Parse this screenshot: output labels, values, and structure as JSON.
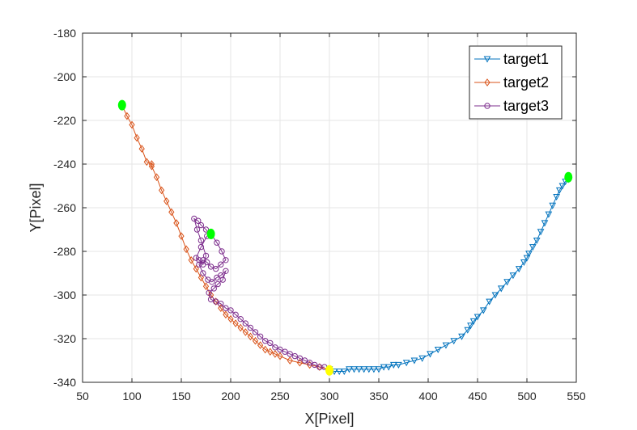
{
  "chart_data": {
    "type": "line",
    "title": "",
    "xlabel": "X[Pixel]",
    "ylabel": "Y[Pixel]",
    "xlim": [
      50,
      550
    ],
    "ylim": [
      -340,
      -180
    ],
    "xticks": [
      50,
      100,
      150,
      200,
      250,
      300,
      350,
      400,
      450,
      500,
      550
    ],
    "yticks": [
      -180,
      -200,
      -220,
      -240,
      -260,
      -280,
      -300,
      -320,
      -340
    ],
    "grid": true,
    "legend_position": "top-right",
    "series": [
      {
        "name": "target1",
        "color": "#0072BD",
        "marker": "triangle-down",
        "x": [
          300,
          305,
          310,
          315,
          320,
          325,
          330,
          335,
          340,
          345,
          350,
          355,
          360,
          365,
          370,
          378,
          386,
          394,
          402,
          410,
          418,
          426,
          434,
          440,
          443,
          446,
          450,
          456,
          462,
          468,
          474,
          480,
          486,
          492,
          497,
          500,
          502,
          506,
          510,
          514,
          518,
          522,
          526,
          530,
          533,
          536,
          539,
          542
        ],
        "y": [
          -334,
          -335,
          -335,
          -335,
          -334,
          -334,
          -334,
          -334,
          -334,
          -334,
          -334,
          -333,
          -333,
          -332,
          -332,
          -331,
          -330,
          -329,
          -327,
          -325,
          -323,
          -321,
          -319,
          -316,
          -314,
          -312,
          -310,
          -307,
          -303,
          -300,
          -297,
          -294,
          -291,
          -288,
          -285,
          -283,
          -281,
          -278,
          -275,
          -271,
          -267,
          -263,
          -259,
          -255,
          -252,
          -250,
          -248,
          -247
        ]
      },
      {
        "name": "target2",
        "color": "#D95319",
        "marker": "diamond",
        "x": [
          90,
          95,
          100,
          105,
          110,
          115,
          120,
          120,
          125,
          130,
          135,
          140,
          145,
          150,
          155,
          160,
          165,
          170,
          175,
          180,
          185,
          190,
          195,
          200,
          205,
          210,
          215,
          220,
          225,
          230,
          235,
          240,
          245,
          250,
          260,
          270,
          280,
          290,
          300
        ],
        "y": [
          -213,
          -218,
          -222,
          -228,
          -233,
          -239,
          -240,
          -241,
          -246,
          -252,
          -257,
          -262,
          -267,
          -273,
          -279,
          -284,
          -288,
          -292,
          -296,
          -300,
          -303,
          -306,
          -309,
          -311,
          -313,
          -315,
          -317,
          -319,
          -321,
          -323,
          -325,
          -326,
          -327,
          -328,
          -330,
          -331,
          -332,
          -333,
          -334
        ]
      },
      {
        "name": "target3",
        "color": "#7E2F8E",
        "marker": "circle",
        "x": [
          179,
          175,
          170,
          167,
          163,
          166,
          170,
          175,
          172,
          168,
          165,
          170,
          176,
          180,
          186,
          191,
          195,
          190,
          185,
          180,
          176,
          172,
          168,
          172,
          177,
          181,
          186,
          190,
          195,
          192,
          187,
          183,
          178,
          180,
          185,
          190,
          195,
          200,
          205,
          210,
          215,
          220,
          225,
          230,
          235,
          240,
          245,
          250,
          255,
          260,
          265,
          270,
          275,
          280,
          285,
          290,
          295
        ],
        "y": [
          -272,
          -270,
          -268,
          -266,
          -265,
          -270,
          -275,
          -282,
          -286,
          -284,
          -283,
          -278,
          -273,
          -272,
          -276,
          -280,
          -284,
          -286,
          -288,
          -287,
          -285,
          -284,
          -286,
          -290,
          -293,
          -294,
          -292,
          -291,
          -289,
          -293,
          -295,
          -297,
          -299,
          -302,
          -303,
          -304,
          -306,
          -307,
          -309,
          -311,
          -313,
          -315,
          -317,
          -319,
          -321,
          -322,
          -324,
          -325,
          -326,
          -327,
          -328,
          -329,
          -330,
          -331,
          -332,
          -333,
          -333
        ]
      }
    ],
    "highlights": [
      {
        "x": 90,
        "y": -213,
        "color": "#00FF00"
      },
      {
        "x": 542,
        "y": -246,
        "color": "#00FF00"
      },
      {
        "x": 180,
        "y": -272,
        "color": "#00FF00"
      },
      {
        "x": 300,
        "y": -334.5,
        "color": "#FFFF00"
      }
    ]
  }
}
